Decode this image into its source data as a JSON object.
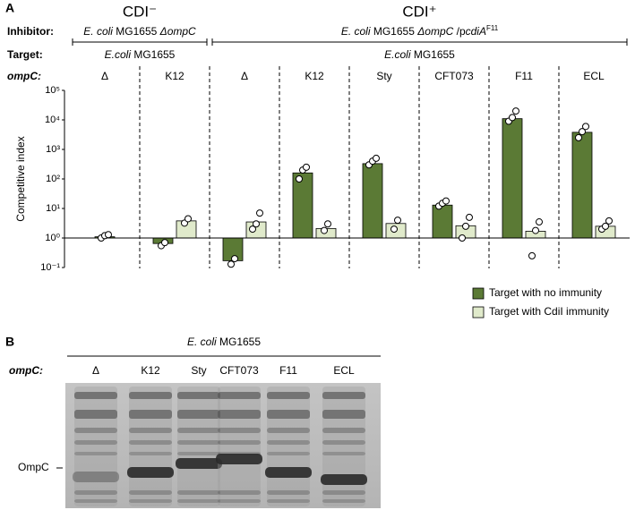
{
  "chart_data": {
    "type": "bar",
    "panel_label": "A",
    "conditions": [
      "CDI⁻",
      "CDI⁺"
    ],
    "row_labels": {
      "inhibitor": "Inhibitor:",
      "target": "Target:",
      "ompc": "ompC:"
    },
    "inhibitors": [
      [
        "E. coli",
        " MG1655 ",
        "ΔompC"
      ],
      [
        "E. coli",
        " MG1655 ",
        "ΔompC",
        " /p",
        "cdiA",
        "F11"
      ]
    ],
    "targets": [
      [
        "E.coli",
        " MG1655"
      ],
      [
        "E.coli",
        " MG1655"
      ]
    ],
    "y_label": "Competitive index",
    "categories": [
      "Δ",
      "K12",
      "Δ",
      "K12",
      "Sty",
      "CFT073",
      "F11",
      "ECL"
    ],
    "series": [
      {
        "name": "Target with no immunity",
        "color": "#5b7a35",
        "values": [
          1.1,
          0.65,
          0.17,
          160,
          330,
          13,
          11000,
          3800
        ],
        "replicates": [
          [
            1.0,
            1.2,
            1.3
          ],
          [
            0.55,
            0.7
          ],
          [
            0.13,
            0.2
          ],
          [
            100,
            200,
            250
          ],
          [
            300,
            400,
            500
          ],
          [
            12,
            15,
            18
          ],
          [
            9000,
            12000,
            20000
          ],
          [
            2500,
            4000,
            6000
          ]
        ]
      },
      {
        "name": "Target with CdiI immunity",
        "color": "#e0eacb",
        "values": [
          null,
          3.8,
          3.5,
          2.1,
          3.1,
          2.6,
          1.7,
          2.5
        ],
        "replicates": [
          [],
          [
            3.2,
            4.5
          ],
          [
            2,
            3,
            7
          ],
          [
            1.8,
            3
          ],
          [
            2,
            4
          ],
          [
            1,
            2.5,
            5
          ],
          [
            0.25,
            1.8,
            3.5
          ],
          [
            2,
            2.5,
            3.8
          ]
        ]
      }
    ],
    "log_scale": true,
    "ylim": [
      0.1,
      100000
    ],
    "yticks": [
      {
        "value": 0.1,
        "label": "10⁻¹"
      },
      {
        "value": 1,
        "label": "10⁰"
      },
      {
        "value": 10,
        "label": "10¹"
      },
      {
        "value": 100,
        "label": "10²"
      },
      {
        "value": 1000,
        "label": "10³"
      },
      {
        "value": 10000,
        "label": "10⁴"
      },
      {
        "value": 100000,
        "label": "10⁵"
      }
    ],
    "legend": "bottom-right"
  },
  "gel": {
    "panel_label": "B",
    "strain": [
      "E. coli",
      " MG1655"
    ],
    "row_label": "ompC:",
    "lanes": [
      "Δ",
      "K12",
      "Sty",
      "CFT073",
      "F11",
      "ECL"
    ],
    "band_label": "OmpC"
  }
}
